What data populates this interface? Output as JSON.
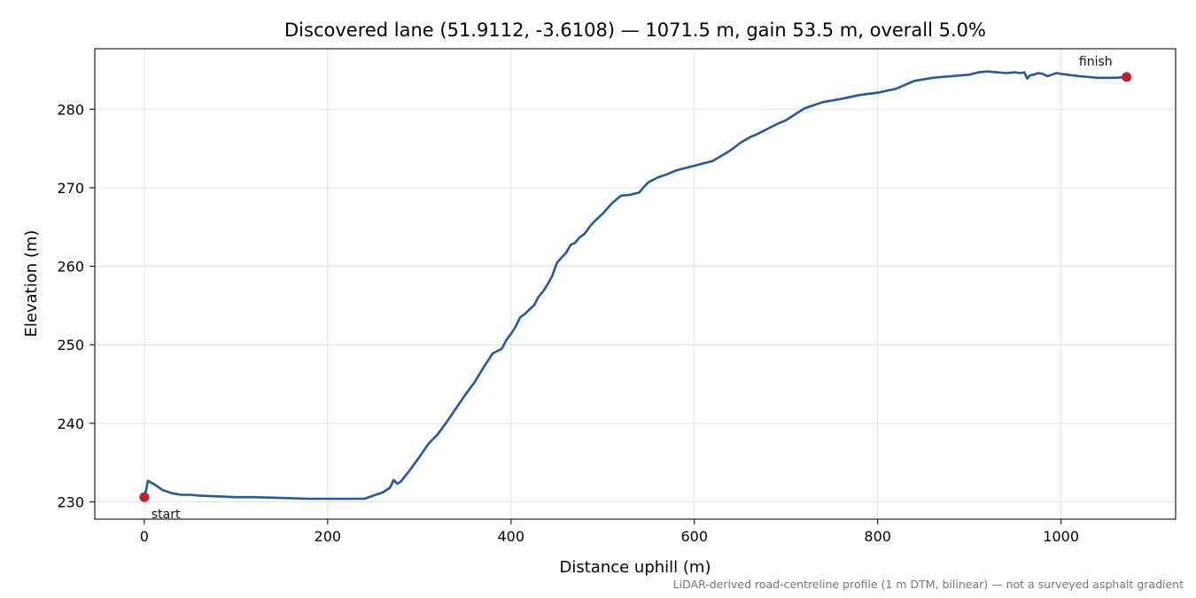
{
  "chart_data": {
    "type": "line",
    "title": "Discovered lane (51.9112, -3.6108) — 1071.5 m, gain 53.5 m, overall 5.0%",
    "xlabel": "Distance uphill (m)",
    "ylabel": "Elevation (m)",
    "xlim": [
      -54,
      1125
    ],
    "ylim": [
      227.8,
      287.7
    ],
    "xticks": [
      0,
      200,
      400,
      600,
      800,
      1000
    ],
    "yticks": [
      230,
      240,
      250,
      260,
      270,
      280
    ],
    "grid": true,
    "caption": "LiDAR-derived road-centreline profile (1 m DTM, bilinear) — not a surveyed asphalt gradient",
    "series": [
      {
        "x": [
          0,
          2,
          4,
          10,
          20,
          30,
          40,
          50,
          60,
          80,
          100,
          120,
          150,
          180,
          200,
          220,
          240,
          250,
          260,
          268,
          272,
          276,
          280,
          290,
          300,
          310,
          320,
          330,
          340,
          350,
          360,
          370,
          380,
          390,
          395,
          400,
          405,
          410,
          415,
          420,
          425,
          430,
          435,
          440,
          445,
          450,
          455,
          460,
          465,
          470,
          475,
          480,
          485,
          490,
          500,
          510,
          520,
          530,
          540,
          545,
          550,
          560,
          570,
          580,
          590,
          600,
          610,
          620,
          630,
          640,
          650,
          660,
          670,
          680,
          690,
          700,
          720,
          740,
          760,
          780,
          800,
          820,
          840,
          860,
          880,
          900,
          910,
          920,
          930,
          940,
          950,
          955,
          960,
          963,
          966,
          970,
          975,
          980,
          985,
          990,
          995,
          1000,
          1020,
          1040,
          1060,
          1071.5
        ],
        "y": [
          230.6,
          231.5,
          232.7,
          232.3,
          231.5,
          231.1,
          230.9,
          230.9,
          230.8,
          230.7,
          230.6,
          230.6,
          230.5,
          230.4,
          230.4,
          230.4,
          230.4,
          230.8,
          231.2,
          231.8,
          232.8,
          232.3,
          232.6,
          234.1,
          235.7,
          237.4,
          238.6,
          240.2,
          241.9,
          243.6,
          245.2,
          247.1,
          248.9,
          249.5,
          250.6,
          251.4,
          252.3,
          253.5,
          253.9,
          254.5,
          255.0,
          256.1,
          256.8,
          257.7,
          258.8,
          260.4,
          261.1,
          261.7,
          262.7,
          263.0,
          263.7,
          264.1,
          264.9,
          265.6,
          266.7,
          268.0,
          269.0,
          269.1,
          269.4,
          270.1,
          270.7,
          271.3,
          271.7,
          272.2,
          272.5,
          272.8,
          273.1,
          273.4,
          274.1,
          274.8,
          275.7,
          276.4,
          276.9,
          277.5,
          278.1,
          278.6,
          280.1,
          280.9,
          281.3,
          281.8,
          282.1,
          282.6,
          283.6,
          284.0,
          284.2,
          284.4,
          284.7,
          284.8,
          284.7,
          284.6,
          284.7,
          284.6,
          284.7,
          283.9,
          284.3,
          284.4,
          284.6,
          284.5,
          284.2,
          284.4,
          284.6,
          284.5,
          284.2,
          284.0,
          284.0,
          284.1
        ]
      }
    ],
    "annotations": [
      {
        "text": "start",
        "x": 0,
        "y": 230.6
      },
      {
        "text": "finish",
        "x": 1071.5,
        "y": 284.1
      }
    ]
  }
}
